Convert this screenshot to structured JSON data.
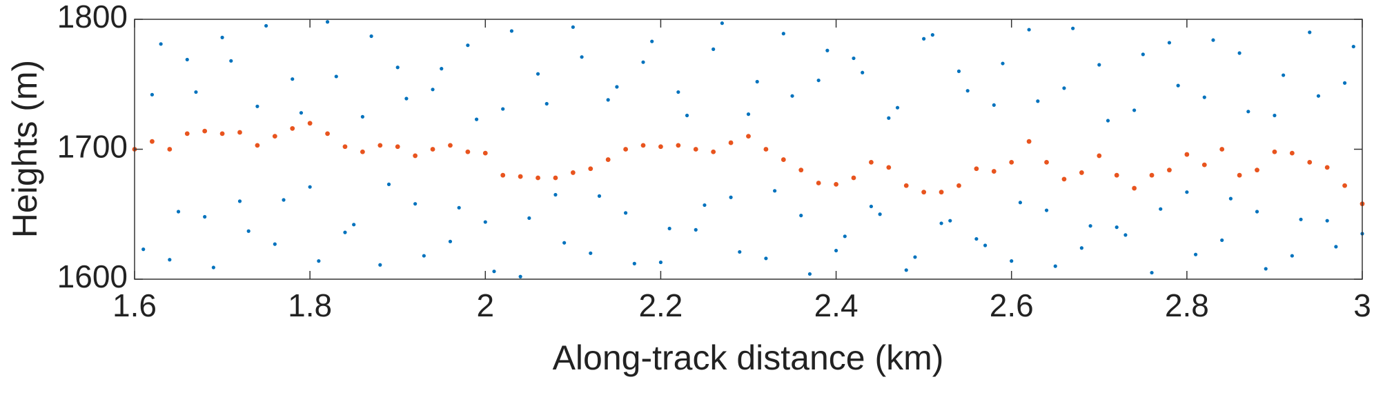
{
  "chart_data": {
    "type": "scatter",
    "xlabel": "Along-track distance (km)",
    "ylabel": "Heights (m)",
    "xlim": [
      1.6,
      3
    ],
    "ylim": [
      1600,
      1800
    ],
    "xticks": [
      1.6,
      1.8,
      2,
      2.2,
      2.4,
      2.6,
      2.8,
      3
    ],
    "yticks": [
      1600,
      1700,
      1800
    ],
    "series": [
      {
        "color": "#0072bd",
        "x": [
          1.61,
          1.63,
          1.65,
          1.67,
          1.69,
          1.71,
          1.73,
          1.75,
          1.77,
          1.79,
          1.81,
          1.83,
          1.85,
          1.87,
          1.89,
          1.91,
          1.93,
          1.95,
          1.97,
          1.99,
          2.01,
          2.03,
          2.05,
          2.07,
          2.09,
          2.11,
          2.13,
          2.15,
          2.17,
          2.19,
          2.21,
          2.23,
          2.25,
          2.27,
          2.29,
          2.31,
          2.33,
          2.35,
          2.37,
          2.39,
          2.41,
          2.43,
          2.45,
          2.47,
          2.49,
          2.51,
          2.53,
          2.55,
          2.57,
          2.59,
          2.61,
          2.63,
          2.65,
          2.67,
          2.69,
          2.71,
          2.73,
          2.75,
          2.77,
          2.79,
          2.81,
          2.83,
          2.85,
          2.87,
          2.89,
          2.91,
          2.93,
          2.95,
          2.97,
          2.99,
          1.62,
          1.64,
          1.66,
          1.68,
          1.7,
          1.72,
          1.74,
          1.76,
          1.78,
          1.8,
          1.82,
          1.84,
          1.86,
          1.88,
          1.9,
          1.92,
          1.94,
          1.96,
          1.98,
          2.0,
          2.02,
          2.04,
          2.06,
          2.08,
          2.1,
          2.12,
          2.14,
          2.16,
          2.18,
          2.2,
          2.22,
          2.24,
          2.26,
          2.28,
          2.3,
          2.32,
          2.34,
          2.36,
          2.38,
          2.4,
          2.42,
          2.44,
          2.46,
          2.48,
          2.5,
          2.52,
          2.54,
          2.56,
          2.58,
          2.6,
          2.62,
          2.64,
          2.66,
          2.68,
          2.7,
          2.72,
          2.74,
          2.76,
          2.78,
          2.8,
          2.82,
          2.84,
          2.86,
          2.88,
          2.9,
          2.92,
          2.94,
          2.96,
          2.98,
          3.0
        ],
        "values": [
          1623,
          1781,
          1652,
          1744,
          1609,
          1768,
          1637,
          1795,
          1661,
          1728,
          1614,
          1756,
          1642,
          1787,
          1673,
          1739,
          1618,
          1762,
          1655,
          1723,
          1606,
          1791,
          1647,
          1735,
          1628,
          1771,
          1664,
          1748,
          1612,
          1783,
          1639,
          1726,
          1657,
          1797,
          1621,
          1752,
          1668,
          1741,
          1604,
          1776,
          1633,
          1759,
          1650,
          1732,
          1617,
          1788,
          1645,
          1745,
          1626,
          1766,
          1659,
          1737,
          1610,
          1793,
          1641,
          1722,
          1634,
          1773,
          1654,
          1749,
          1619,
          1784,
          1662,
          1729,
          1608,
          1757,
          1646,
          1741,
          1625,
          1779,
          1742,
          1615,
          1769,
          1648,
          1786,
          1660,
          1733,
          1627,
          1754,
          1671,
          1798,
          1636,
          1725,
          1611,
          1763,
          1658,
          1746,
          1629,
          1780,
          1644,
          1731,
          1602,
          1758,
          1665,
          1794,
          1620,
          1738,
          1651,
          1767,
          1613,
          1744,
          1638,
          1777,
          1663,
          1727,
          1616,
          1789,
          1649,
          1753,
          1622,
          1770,
          1656,
          1724,
          1607,
          1785,
          1643,
          1760,
          1631,
          1734,
          1614,
          1792,
          1653,
          1747,
          1624,
          1765,
          1640,
          1730,
          1605,
          1782,
          1667,
          1740,
          1630,
          1774,
          1652,
          1726,
          1618,
          1790,
          1645,
          1751,
          1635
        ]
      },
      {
        "color": "#e8541e",
        "x": [
          1.6,
          1.62,
          1.64,
          1.66,
          1.68,
          1.7,
          1.72,
          1.74,
          1.76,
          1.78,
          1.8,
          1.82,
          1.84,
          1.86,
          1.88,
          1.9,
          1.92,
          1.94,
          1.96,
          1.98,
          2,
          2.02,
          2.04,
          2.06,
          2.08,
          2.1,
          2.12,
          2.14,
          2.16,
          2.18,
          2.2,
          2.22,
          2.24,
          2.26,
          2.28,
          2.3,
          2.32,
          2.34,
          2.36,
          2.38,
          2.4,
          2.42,
          2.44,
          2.46,
          2.48,
          2.5,
          2.52,
          2.54,
          2.56,
          2.58,
          2.6,
          2.62,
          2.64,
          2.66,
          2.68,
          2.7,
          2.72,
          2.74,
          2.76,
          2.78,
          2.8,
          2.82,
          2.84,
          2.86,
          2.88,
          2.9,
          2.92,
          2.94,
          2.96,
          2.98,
          3
        ],
        "values": [
          1700,
          1706,
          1700,
          1712,
          1714,
          1712,
          1713,
          1703,
          1710,
          1716,
          1720,
          1712,
          1702,
          1698,
          1703,
          1702,
          1695,
          1700,
          1703,
          1698,
          1697,
          1680,
          1679,
          1678,
          1678,
          1682,
          1685,
          1692,
          1700,
          1703,
          1702,
          1703,
          1700,
          1698,
          1705,
          1710,
          1700,
          1692,
          1684,
          1674,
          1673,
          1678,
          1690,
          1686,
          1672,
          1667,
          1667,
          1672,
          1685,
          1683,
          1690,
          1706,
          1690,
          1677,
          1682,
          1695,
          1680,
          1670,
          1680,
          1684,
          1696,
          1688,
          1700,
          1680,
          1684,
          1698,
          1697,
          1690,
          1686,
          1672,
          1658
        ]
      }
    ]
  }
}
